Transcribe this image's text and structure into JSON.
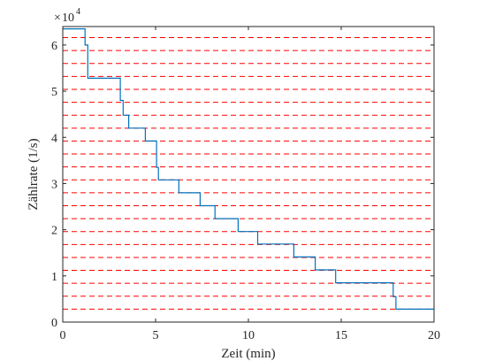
{
  "chart_data": {
    "type": "line",
    "title": "",
    "xlabel": "Zeit (min)",
    "ylabel": "Zählrate (1/s)",
    "xlim": [
      0,
      20
    ],
    "ylim": [
      0,
      64000
    ],
    "x_ticks": [
      "0",
      "5",
      "10",
      "15",
      "20"
    ],
    "y_ticks": [
      "0",
      "1",
      "2",
      "3",
      "4",
      "5",
      "6"
    ],
    "y_exponent": {
      "base": "10",
      "power": "4"
    },
    "y_multiplier": 10000,
    "series": [
      {
        "color": "#0072BD",
        "x": [
          0.0,
          1.2,
          1.2,
          1.35,
          1.35,
          3.1,
          3.1,
          3.25,
          3.25,
          3.55,
          3.55,
          3.75,
          3.75,
          4.45,
          4.45,
          4.6,
          4.6,
          5.05,
          5.05,
          5.15,
          5.15,
          6.25,
          6.25,
          7.4,
          7.4,
          8.2,
          8.2,
          9.45,
          9.45,
          10.5,
          10.5,
          12.45,
          12.45,
          13.6,
          13.6,
          14.7,
          14.7,
          17.8,
          17.8,
          17.95,
          17.95,
          20.0
        ],
        "y": [
          63500,
          63500,
          60000,
          60000,
          52800,
          52800,
          48000,
          48000,
          44800,
          44800,
          42000,
          42000,
          42000,
          42000,
          39200,
          39200,
          39200,
          39200,
          33500,
          33500,
          30800,
          30800,
          28000,
          28000,
          25200,
          25200,
          22400,
          22400,
          19600,
          19600,
          16900,
          16900,
          14100,
          14100,
          11300,
          11300,
          8500,
          8500,
          5500,
          5500,
          2800,
          2800
        ]
      }
    ],
    "reference_lines": {
      "style": "dashed",
      "color": "#FF0000",
      "y": [
        2800,
        5600,
        8400,
        11200,
        14000,
        16800,
        19600,
        22400,
        25200,
        28000,
        30800,
        33600,
        36400,
        39200,
        42000,
        44800,
        47600,
        50400,
        53200,
        56000,
        58800,
        61600
      ]
    },
    "grid": false,
    "legend": false
  }
}
